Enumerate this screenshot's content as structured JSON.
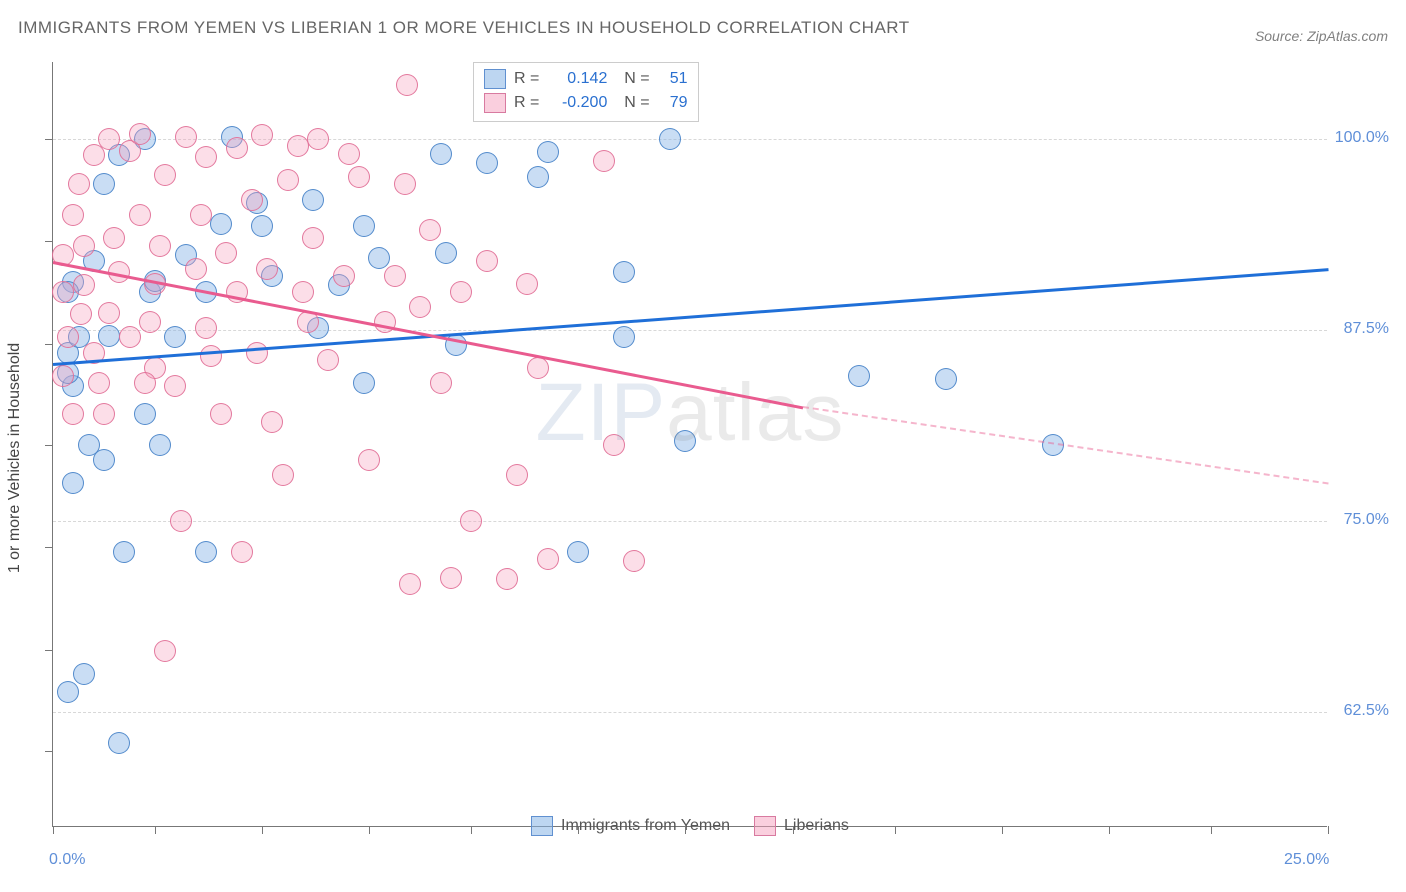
{
  "title": "IMMIGRANTS FROM YEMEN VS LIBERIAN 1 OR MORE VEHICLES IN HOUSEHOLD CORRELATION CHART",
  "source": "Source: ZipAtlas.com",
  "watermark_bold": "ZIP",
  "watermark_thin": "atlas",
  "chart": {
    "type": "scatter",
    "xlim": [
      0,
      25
    ],
    "ylim": [
      55,
      105
    ],
    "x_tick_positions": [
      0,
      2.0,
      4.1,
      6.2,
      8.2,
      10.3,
      12.4,
      14.5,
      16.5,
      18.6,
      20.7,
      22.7,
      25.0
    ],
    "x_tick_labels_shown": {
      "0": "0.0%",
      "25": "25.0%"
    },
    "y_gridlines": [
      62.5,
      75.0,
      87.5,
      100.0
    ],
    "y_tick_labels": [
      "62.5%",
      "75.0%",
      "87.5%",
      "100.0%"
    ],
    "y_axis_ticks": [
      60.0,
      66.6,
      73.3,
      80.0,
      86.6,
      93.3,
      100.0
    ],
    "y_title": "1 or more Vehicles in Household",
    "background_color": "#ffffff",
    "grid_color": "#d8d8d8",
    "axis_color": "#777777",
    "marker_radius": 11,
    "series": [
      {
        "name": "Immigrants from Yemen",
        "short": "blue",
        "color_fill": "rgba(135,180,230,0.45)",
        "color_stroke": "rgba(70,130,200,0.9)",
        "R": "0.142",
        "N": "51",
        "trend": {
          "x0": 0,
          "y0": 85.3,
          "x1": 25,
          "y1": 91.5,
          "color": "#1f6fd8"
        },
        "points": [
          [
            0.3,
            63.8
          ],
          [
            0.6,
            65.0
          ],
          [
            1.3,
            60.5
          ],
          [
            0.4,
            77.5
          ],
          [
            0.7,
            80.0
          ],
          [
            1.0,
            79.0
          ],
          [
            0.4,
            83.8
          ],
          [
            0.3,
            84.7
          ],
          [
            0.4,
            90.6
          ],
          [
            0.3,
            86.0
          ],
          [
            0.3,
            90.0
          ],
          [
            0.5,
            87.0
          ],
          [
            1.1,
            87.1
          ],
          [
            0.8,
            92.0
          ],
          [
            1.3,
            98.9
          ],
          [
            1.8,
            100.0
          ],
          [
            1.0,
            97.0
          ],
          [
            1.9,
            90.0
          ],
          [
            2.4,
            87.0
          ],
          [
            1.8,
            82.0
          ],
          [
            2.1,
            80.0
          ],
          [
            2.6,
            92.4
          ],
          [
            3.3,
            94.4
          ],
          [
            3.0,
            90.0
          ],
          [
            3.5,
            100.1
          ],
          [
            4.3,
            91.0
          ],
          [
            4.0,
            95.8
          ],
          [
            4.1,
            94.3
          ],
          [
            5.2,
            87.6
          ],
          [
            5.6,
            90.4
          ],
          [
            5.1,
            96.0
          ],
          [
            6.1,
            94.3
          ],
          [
            6.4,
            92.2
          ],
          [
            6.1,
            84.0
          ],
          [
            7.9,
            86.5
          ],
          [
            7.6,
            99.0
          ],
          [
            7.7,
            92.5
          ],
          [
            8.5,
            98.4
          ],
          [
            9.5,
            97.5
          ],
          [
            9.7,
            99.1
          ],
          [
            11.2,
            91.3
          ],
          [
            11.2,
            87.0
          ],
          [
            12.4,
            80.2
          ],
          [
            12.1,
            100.0
          ],
          [
            15.8,
            84.5
          ],
          [
            17.5,
            84.3
          ],
          [
            19.6,
            80.0
          ],
          [
            10.3,
            73.0
          ],
          [
            3.0,
            73.0
          ],
          [
            1.4,
            73.0
          ],
          [
            2.0,
            90.7
          ]
        ]
      },
      {
        "name": "Liberians",
        "short": "pink",
        "color_fill": "rgba(245,160,190,0.35)",
        "color_stroke": "rgba(225,110,150,0.9)",
        "R": "-0.200",
        "N": "79",
        "trend": {
          "x0": 0,
          "y0": 92.0,
          "x1": 14.7,
          "y1": 82.5,
          "dash_to_x": 25,
          "dash_to_y": 77.5,
          "color": "#e95b8f"
        },
        "points": [
          [
            0.2,
            90.0
          ],
          [
            0.2,
            92.4
          ],
          [
            0.3,
            87.0
          ],
          [
            0.2,
            84.5
          ],
          [
            0.4,
            82.0
          ],
          [
            0.55,
            88.5
          ],
          [
            0.5,
            97.0
          ],
          [
            0.6,
            93.0
          ],
          [
            0.8,
            98.9
          ],
          [
            0.8,
            86.0
          ],
          [
            0.9,
            84.0
          ],
          [
            1.0,
            82.0
          ],
          [
            1.1,
            88.6
          ],
          [
            1.1,
            100.0
          ],
          [
            1.2,
            93.5
          ],
          [
            1.3,
            91.3
          ],
          [
            1.5,
            87.0
          ],
          [
            1.5,
            99.2
          ],
          [
            1.7,
            95.0
          ],
          [
            1.7,
            100.3
          ],
          [
            1.9,
            88.0
          ],
          [
            2.0,
            85.0
          ],
          [
            2.1,
            93.0
          ],
          [
            2.2,
            97.6
          ],
          [
            2.2,
            66.5
          ],
          [
            2.4,
            83.8
          ],
          [
            2.6,
            100.1
          ],
          [
            2.8,
            91.5
          ],
          [
            2.9,
            95.0
          ],
          [
            3.0,
            87.6
          ],
          [
            3.1,
            85.8
          ],
          [
            3.0,
            98.8
          ],
          [
            3.4,
            92.5
          ],
          [
            3.6,
            90.0
          ],
          [
            3.6,
            99.4
          ],
          [
            3.7,
            73.0
          ],
          [
            3.9,
            96.0
          ],
          [
            4.0,
            86.0
          ],
          [
            4.1,
            100.2
          ],
          [
            4.2,
            91.5
          ],
          [
            4.3,
            81.5
          ],
          [
            4.5,
            78.0
          ],
          [
            4.6,
            97.3
          ],
          [
            4.8,
            99.5
          ],
          [
            5.0,
            88.0
          ],
          [
            5.1,
            93.5
          ],
          [
            5.2,
            100.0
          ],
          [
            5.4,
            85.5
          ],
          [
            5.7,
            91.0
          ],
          [
            5.8,
            99.0
          ],
          [
            6.0,
            97.5
          ],
          [
            6.2,
            79.0
          ],
          [
            6.95,
            103.5
          ],
          [
            6.5,
            88.0
          ],
          [
            6.7,
            91.0
          ],
          [
            6.9,
            97.0
          ],
          [
            7.0,
            70.9
          ],
          [
            7.2,
            89.0
          ],
          [
            7.4,
            94.0
          ],
          [
            7.6,
            84.0
          ],
          [
            7.8,
            71.3
          ],
          [
            8.0,
            90.0
          ],
          [
            8.2,
            75.0
          ],
          [
            8.5,
            92.0
          ],
          [
            8.9,
            71.2
          ],
          [
            9.3,
            90.5
          ],
          [
            9.1,
            78.0
          ],
          [
            9.5,
            85.0
          ],
          [
            9.7,
            72.5
          ],
          [
            10.8,
            98.5
          ],
          [
            11.0,
            80.0
          ],
          [
            11.4,
            72.4
          ],
          [
            3.3,
            82.0
          ],
          [
            2.0,
            90.5
          ],
          [
            2.5,
            75.0
          ],
          [
            4.9,
            90.0
          ],
          [
            0.6,
            90.4
          ],
          [
            1.8,
            84.0
          ],
          [
            0.4,
            95.0
          ]
        ]
      }
    ],
    "legend_bottom": [
      {
        "label": "Immigrants from Yemen",
        "swatch": "blue"
      },
      {
        "label": "Liberians",
        "swatch": "pink"
      }
    ]
  }
}
